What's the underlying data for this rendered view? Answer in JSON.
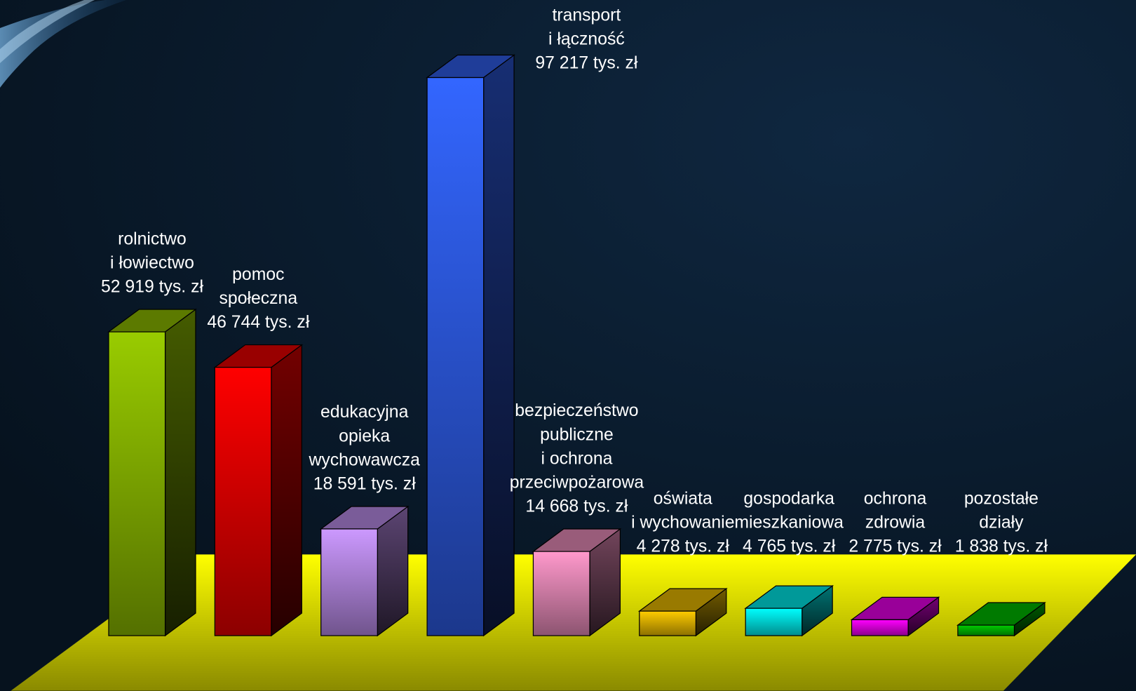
{
  "chart_data": {
    "type": "bar3d",
    "categories": [
      [
        "rolnictwo",
        "i łowiectwo"
      ],
      [
        "pomoc",
        "społeczna"
      ],
      [
        "edukacyjna",
        "opieka",
        "wychowawcza"
      ],
      [
        "transport",
        "i łączność"
      ],
      [
        "bezpieczeństwo",
        "publiczne",
        "i ochrona",
        "przeciwpożarowa"
      ],
      [
        "oświata",
        "i wychowanie"
      ],
      [
        "gospodarka",
        "mieszkaniowa"
      ],
      [
        "ochrona",
        "zdrowia"
      ],
      [
        "pozostałe",
        "działy"
      ]
    ],
    "values": [
      52919,
      46744,
      18591,
      97217,
      14668,
      4278,
      4765,
      2775,
      1838
    ],
    "value_labels": [
      "52 919 tys. zł",
      "46 744 tys. zł",
      "18 591 tys. zł",
      "97 217 tys. zł",
      "14 668 tys. zł",
      "4 278 tys. zł",
      "4 765 tys. zł",
      "2 775 tys. zł",
      "1 838 tys. zł"
    ],
    "colors": [
      "#99cc00",
      "#ff0000",
      "#cc99ff",
      "#3366ff",
      "#ff99cc",
      "#ffcc00",
      "#00ffff",
      "#ff00ff",
      "#00cc00"
    ]
  }
}
